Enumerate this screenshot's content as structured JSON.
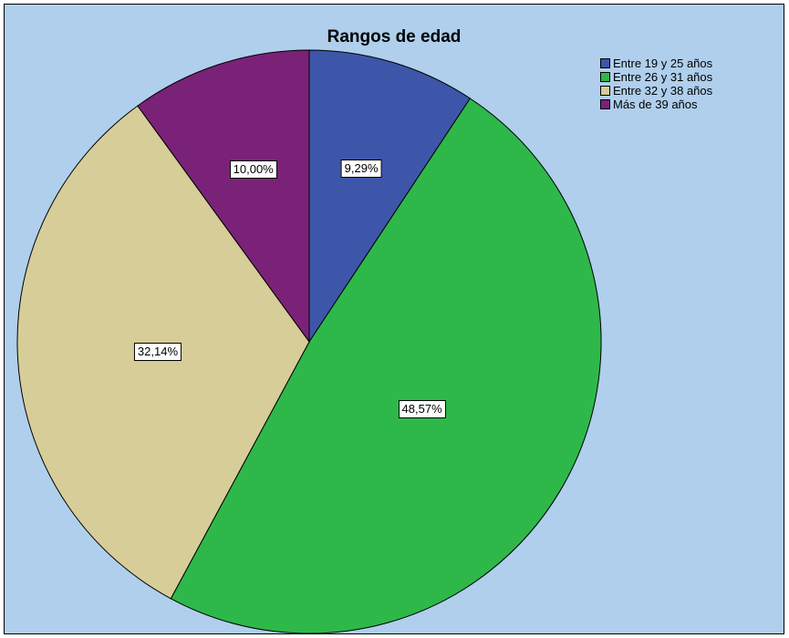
{
  "colors": {
    "background": "#afcfec",
    "slice_edge": "#000000"
  },
  "chart_data": {
    "type": "pie",
    "title": "Rangos de edad",
    "legend_position": "top-right",
    "slices": [
      {
        "label": "Entre 19 y 25 años",
        "value": 9.29,
        "display": "9,29%",
        "color": "#3d56aa"
      },
      {
        "label": "Entre 26 y 31 años",
        "value": 48.57,
        "display": "48,57%",
        "color": "#2eb84a"
      },
      {
        "label": "Entre 32 y 38 años",
        "value": 32.14,
        "display": "32,14%",
        "color": "#d6cd98"
      },
      {
        "label": "Más de 39 años",
        "value": 10.0,
        "display": "10,00%",
        "color": "#7a2278"
      }
    ]
  }
}
